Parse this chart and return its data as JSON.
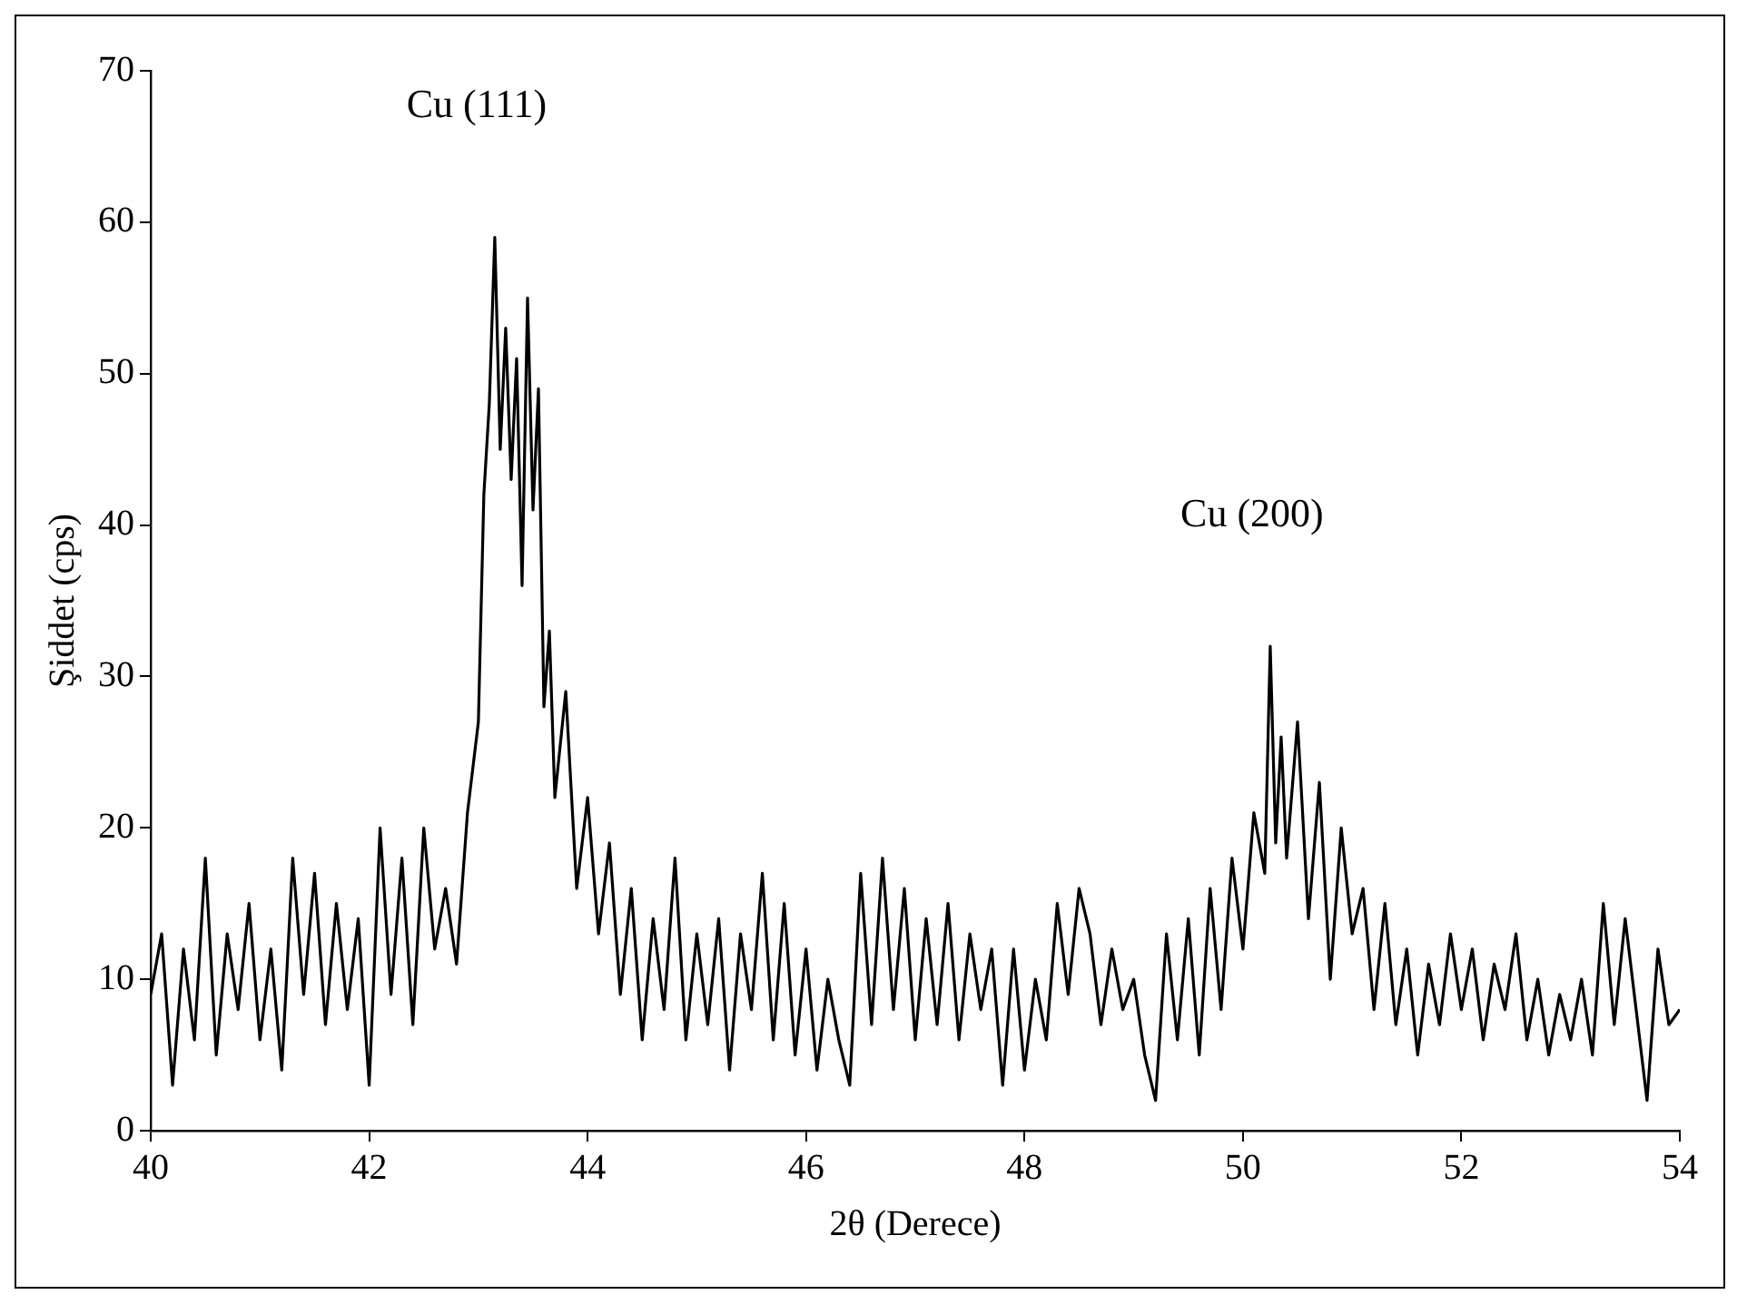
{
  "chart_data": {
    "type": "line",
    "xlabel": "2θ (Derece)",
    "ylabel": "Şiddet (cps)",
    "xlim": [
      40,
      54
    ],
    "ylim": [
      0,
      70
    ],
    "xticks": [
      40,
      42,
      44,
      46,
      48,
      50,
      52,
      54
    ],
    "yticks": [
      0,
      10,
      20,
      30,
      40,
      50,
      60,
      70
    ],
    "annotations": [
      {
        "text": "Cu (111)",
        "x": 43.15,
        "y": 59
      },
      {
        "text": "Cu (200)",
        "x": 50.25,
        "y": 32
      }
    ],
    "series": [
      {
        "color": "#000000",
        "x": [
          40.0,
          40.1,
          40.2,
          40.3,
          40.4,
          40.5,
          40.6,
          40.7,
          40.8,
          40.9,
          41.0,
          41.1,
          41.2,
          41.3,
          41.4,
          41.5,
          41.6,
          41.7,
          41.8,
          41.9,
          42.0,
          42.1,
          42.2,
          42.3,
          42.4,
          42.5,
          42.6,
          42.7,
          42.8,
          42.9,
          43.0,
          43.05,
          43.1,
          43.15,
          43.2,
          43.25,
          43.3,
          43.35,
          43.4,
          43.45,
          43.5,
          43.55,
          43.6,
          43.65,
          43.7,
          43.8,
          43.9,
          44.0,
          44.1,
          44.2,
          44.3,
          44.4,
          44.5,
          44.6,
          44.7,
          44.8,
          44.9,
          45.0,
          45.1,
          45.2,
          45.3,
          45.4,
          45.5,
          45.6,
          45.7,
          45.8,
          45.9,
          46.0,
          46.1,
          46.2,
          46.3,
          46.4,
          46.5,
          46.6,
          46.7,
          46.8,
          46.9,
          47.0,
          47.1,
          47.2,
          47.3,
          47.4,
          47.5,
          47.6,
          47.7,
          47.8,
          47.9,
          48.0,
          48.1,
          48.2,
          48.3,
          48.4,
          48.5,
          48.6,
          48.7,
          48.8,
          48.9,
          49.0,
          49.1,
          49.2,
          49.3,
          49.4,
          49.5,
          49.6,
          49.7,
          49.8,
          49.9,
          50.0,
          50.1,
          50.2,
          50.25,
          50.3,
          50.35,
          50.4,
          50.5,
          50.6,
          50.7,
          50.8,
          50.9,
          51.0,
          51.1,
          51.2,
          51.3,
          51.4,
          51.5,
          51.6,
          51.7,
          51.8,
          51.9,
          52.0,
          52.1,
          52.2,
          52.3,
          52.4,
          52.5,
          52.6,
          52.7,
          52.8,
          52.9,
          53.0,
          53.1,
          53.2,
          53.3,
          53.4,
          53.5,
          53.6,
          53.7,
          53.8,
          53.9,
          54.0
        ],
        "values": [
          9,
          13,
          3,
          12,
          6,
          18,
          5,
          13,
          8,
          15,
          6,
          12,
          4,
          18,
          9,
          17,
          7,
          15,
          8,
          14,
          3,
          20,
          9,
          18,
          7,
          20,
          12,
          16,
          11,
          21,
          27,
          42,
          48,
          59,
          45,
          53,
          43,
          51,
          36,
          55,
          41,
          49,
          28,
          33,
          22,
          29,
          16,
          22,
          13,
          19,
          9,
          16,
          6,
          14,
          8,
          18,
          6,
          13,
          7,
          14,
          4,
          13,
          8,
          17,
          6,
          15,
          5,
          12,
          4,
          10,
          6,
          3,
          17,
          7,
          18,
          8,
          16,
          6,
          14,
          7,
          15,
          6,
          13,
          8,
          12,
          3,
          12,
          4,
          10,
          6,
          15,
          9,
          16,
          13,
          7,
          12,
          8,
          10,
          5,
          2,
          13,
          6,
          14,
          5,
          16,
          8,
          18,
          12,
          21,
          17,
          32,
          19,
          26,
          18,
          27,
          14,
          23,
          10,
          20,
          13,
          16,
          8,
          15,
          7,
          12,
          5,
          11,
          7,
          13,
          8,
          12,
          6,
          11,
          8,
          13,
          6,
          10,
          5,
          9,
          6,
          10,
          5,
          15,
          7,
          14,
          8,
          2,
          12,
          7,
          8
        ]
      }
    ]
  }
}
